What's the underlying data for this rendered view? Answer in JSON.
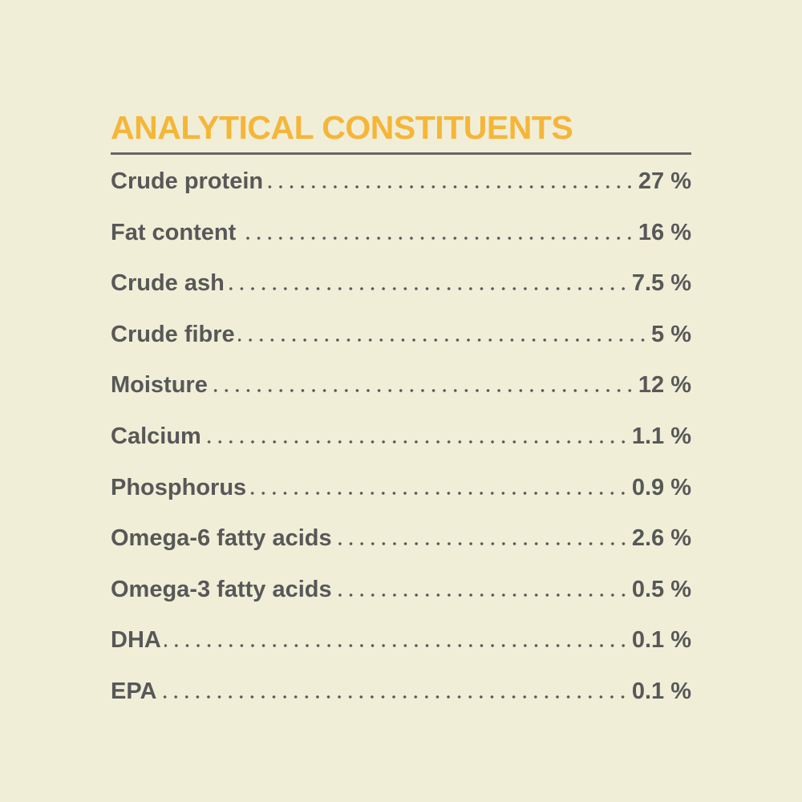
{
  "title": "ANALYTICAL CONSTITUENTS",
  "table": {
    "rows": [
      [
        "Crude protein",
        "27 %"
      ],
      [
        "Fat content",
        "16 %"
      ],
      [
        "Crude ash",
        "7.5 %"
      ],
      [
        "Crude fibre",
        "5 %"
      ],
      [
        "Moisture",
        "12 %"
      ],
      [
        "Calcium",
        "1.1 %"
      ],
      [
        "Phosphorus",
        "0.9 %"
      ],
      [
        "Omega-6 fatty acids",
        "2.6 %"
      ],
      [
        "Omega-3 fatty acids",
        "0.5 %"
      ],
      [
        "DHA",
        "0.1 %"
      ],
      [
        "EPA",
        "0.1 %"
      ]
    ]
  }
}
